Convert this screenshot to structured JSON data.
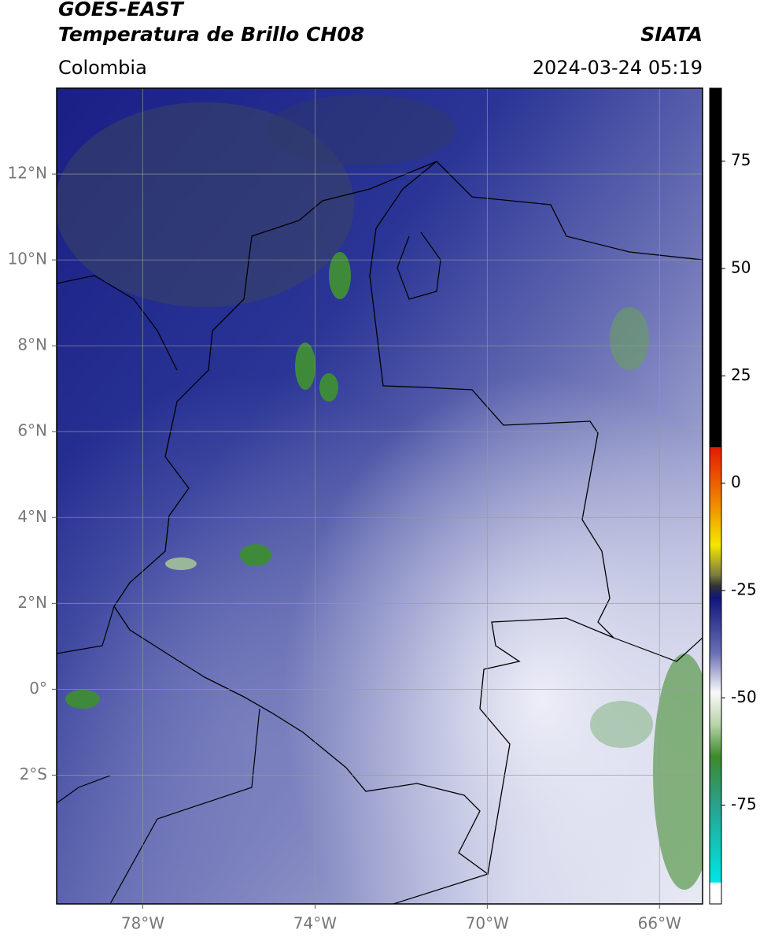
{
  "header": {
    "line1": "GOES-EAST",
    "line2": "Temperatura de Brillo CH08",
    "source": "SIATA",
    "region": "Colombia",
    "datetime": "2024-03-24 05:19"
  },
  "map": {
    "xlim": [
      -80,
      -65
    ],
    "ylim": [
      -5,
      14
    ],
    "xticks": [
      {
        "value": -78,
        "label": "78°W"
      },
      {
        "value": -74,
        "label": "74°W"
      },
      {
        "value": -70,
        "label": "70°W"
      },
      {
        "value": -66,
        "label": "66°W"
      }
    ],
    "yticks": [
      {
        "value": 12,
        "label": "12°N"
      },
      {
        "value": 10,
        "label": "10°N"
      },
      {
        "value": 8,
        "label": "8°N"
      },
      {
        "value": 6,
        "label": "6°N"
      },
      {
        "value": 4,
        "label": "4°N"
      },
      {
        "value": 2,
        "label": "2°N"
      },
      {
        "value": 0,
        "label": "0°"
      },
      {
        "value": -2,
        "label": "2°S"
      }
    ],
    "grid": true
  },
  "colorbar": {
    "lim": [
      -98,
      92
    ],
    "ticks": [
      75,
      50,
      25,
      0,
      -25,
      -50,
      -75
    ]
  }
}
